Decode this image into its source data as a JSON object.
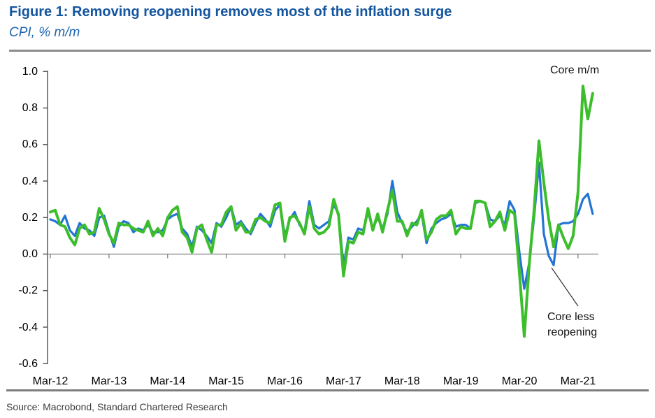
{
  "header": {
    "title": "Figure 1: Removing reopening removes most of the inflation surge",
    "subtitle": "CPI, % m/m"
  },
  "footer": {
    "source": "Source: Macrobond, Standard Chartered Research"
  },
  "colors": {
    "title_blue": "#14559F",
    "subtitle_blue": "#1D64B0",
    "core_green": "#3CBE2C",
    "core_less_blue": "#2374D4",
    "axis_gray": "#595959",
    "zero_line_gray": "#808080",
    "rule_gray": "#8c8c8c"
  },
  "chart_data": {
    "type": "line",
    "title": "Figure 1: Removing reopening removes most of the inflation surge",
    "subtitle": "CPI, % m/m",
    "frequency": "monthly",
    "x_start": "Mar-12",
    "x_end": "Jun-21",
    "x_tick_labels": [
      "Mar-12",
      "Mar-13",
      "Mar-14",
      "Mar-15",
      "Mar-16",
      "Mar-17",
      "Mar-18",
      "Mar-19",
      "Mar-20",
      "Mar-21"
    ],
    "y_tick_labels": [
      "1.0",
      "0.8",
      "0.6",
      "0.4",
      "0.2",
      "0.0",
      "-0.2",
      "-0.4",
      "-0.6"
    ],
    "ylim": [
      -0.6,
      1.0
    ],
    "ytick_step": 0.2,
    "grid": "zero-line-only",
    "legend_position": "inline-annotations",
    "series": [
      {
        "name": "Core m/m",
        "color": "#3CBE2C",
        "values": [
          0.23,
          0.24,
          0.16,
          0.15,
          0.09,
          0.05,
          0.14,
          0.16,
          0.11,
          0.12,
          0.25,
          0.19,
          0.11,
          0.06,
          0.17,
          0.16,
          0.16,
          0.14,
          0.13,
          0.12,
          0.18,
          0.1,
          0.14,
          0.1,
          0.2,
          0.24,
          0.26,
          0.12,
          0.09,
          0.01,
          0.14,
          0.16,
          0.08,
          0.01,
          0.16,
          0.16,
          0.23,
          0.26,
          0.13,
          0.17,
          0.12,
          0.12,
          0.19,
          0.2,
          0.18,
          0.17,
          0.27,
          0.28,
          0.07,
          0.2,
          0.21,
          0.17,
          0.11,
          0.26,
          0.14,
          0.11,
          0.12,
          0.15,
          0.3,
          0.21,
          -0.12,
          0.07,
          0.06,
          0.12,
          0.11,
          0.25,
          0.13,
          0.22,
          0.12,
          0.24,
          0.35,
          0.18,
          0.18,
          0.1,
          0.17,
          0.16,
          0.24,
          0.08,
          0.12,
          0.19,
          0.21,
          0.21,
          0.24,
          0.11,
          0.15,
          0.14,
          0.14,
          0.29,
          0.29,
          0.28,
          0.15,
          0.18,
          0.23,
          0.13,
          0.24,
          0.22,
          -0.1,
          -0.45,
          -0.06,
          0.24,
          0.62,
          0.39,
          0.19,
          0.04,
          0.16,
          0.09,
          0.03,
          0.1,
          0.34,
          0.92,
          0.74,
          0.88
        ]
      },
      {
        "name": "Core less reopening",
        "color": "#2374D4",
        "values": [
          0.19,
          0.18,
          0.16,
          0.21,
          0.13,
          0.1,
          0.17,
          0.14,
          0.13,
          0.1,
          0.2,
          0.21,
          0.12,
          0.04,
          0.15,
          0.18,
          0.17,
          0.12,
          0.14,
          0.13,
          0.16,
          0.12,
          0.12,
          0.13,
          0.19,
          0.21,
          0.22,
          0.14,
          0.11,
          0.04,
          0.15,
          0.13,
          0.1,
          0.06,
          0.17,
          0.15,
          0.2,
          0.26,
          0.16,
          0.18,
          0.14,
          0.11,
          0.17,
          0.22,
          0.19,
          0.15,
          0.24,
          0.27,
          0.1,
          0.19,
          0.23,
          0.16,
          0.12,
          0.29,
          0.16,
          0.14,
          0.16,
          0.18,
          0.27,
          0.22,
          -0.07,
          0.09,
          0.08,
          0.14,
          0.13,
          0.23,
          0.14,
          0.2,
          0.14,
          0.22,
          0.4,
          0.23,
          0.17,
          0.12,
          0.15,
          0.18,
          0.22,
          0.06,
          0.14,
          0.17,
          0.19,
          0.2,
          0.22,
          0.15,
          0.16,
          0.16,
          0.14,
          0.28,
          0.29,
          0.28,
          0.19,
          0.18,
          0.21,
          0.16,
          0.29,
          0.24,
          0.01,
          -0.19,
          -0.05,
          0.2,
          0.5,
          0.11,
          -0.01,
          -0.06,
          0.16,
          0.17,
          0.17,
          0.18,
          0.22,
          0.3,
          0.33,
          0.22
        ]
      }
    ],
    "annotations": [
      {
        "label": "Core m/m",
        "type": "series-label",
        "series": "Core m/m"
      },
      {
        "label": "Core less reopening",
        "type": "callout-with-leader-line",
        "series": "Core less reopening",
        "target_month": "Oct-20"
      }
    ]
  }
}
